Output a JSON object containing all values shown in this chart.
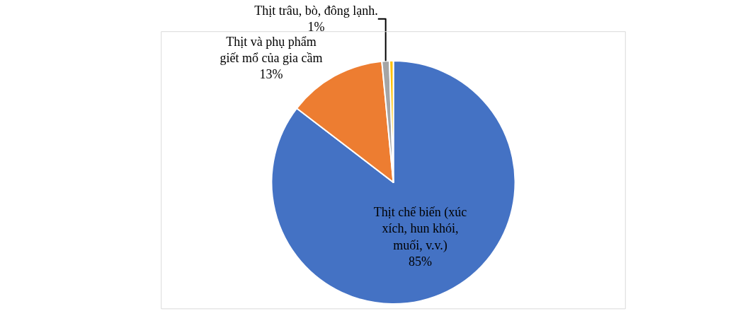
{
  "chart_data": {
    "type": "pie",
    "categories": [
      "Thịt chế biến (xúc\nxích, hun khói,\nmuối, v.v.)",
      "Thịt và phụ phẩm\ngiết mổ của gia cầm",
      "Thịt trâu, bò, đông lạnh.",
      null
    ],
    "values": [
      85,
      13,
      1,
      0.5
    ],
    "value_labels": [
      "85%",
      "13%",
      "1%",
      null
    ],
    "colors": [
      "#4472c4",
      "#ed7d31",
      "#a5a5a5",
      "#ffc000"
    ],
    "legend": false
  }
}
